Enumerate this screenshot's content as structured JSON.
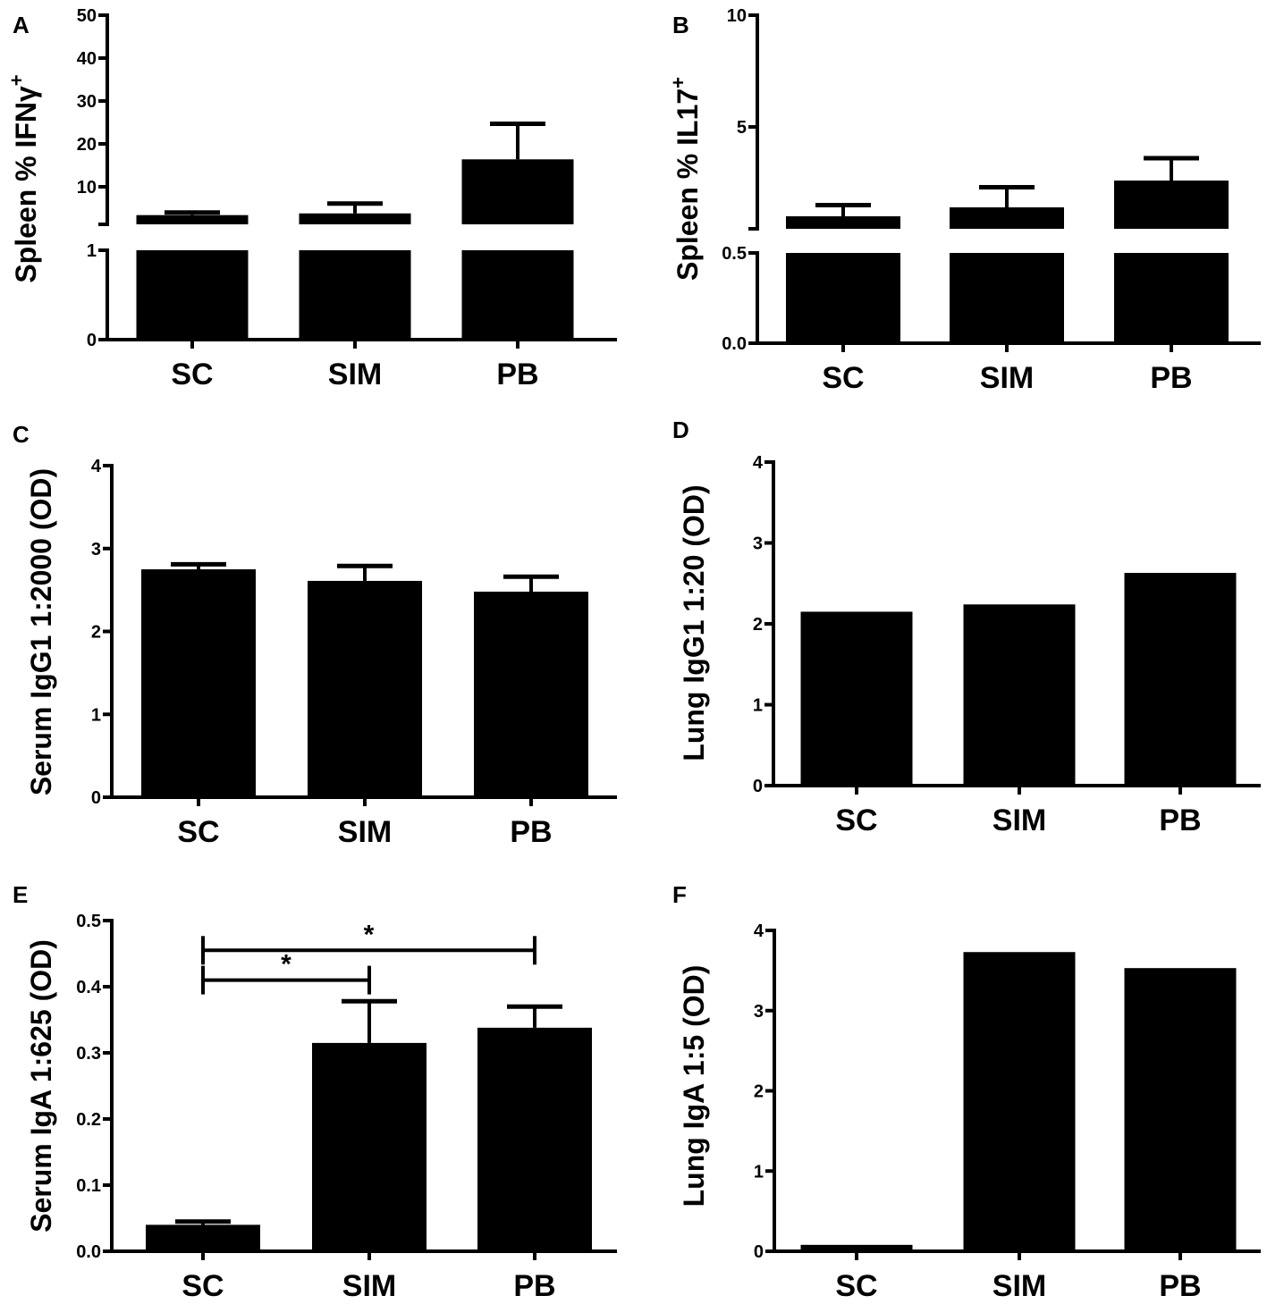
{
  "chart_data": [
    {
      "panel": "A",
      "type": "bar",
      "ylabel": "Spleen % IFNγ",
      "ylabel_sup": "+",
      "categories": [
        "SC",
        "SIM",
        "PB"
      ],
      "values": [
        3.4,
        3.8,
        16.4
      ],
      "error_upper": [
        4.0,
        6.1,
        24.7
      ],
      "y_axis_break": true,
      "lower_segment": {
        "ylim": [
          0,
          1
        ],
        "ticks": [
          "0",
          "1"
        ]
      },
      "upper_segment": {
        "ylim": [
          1.2,
          50
        ],
        "ticks": [
          "10",
          "20",
          "30",
          "40",
          "50"
        ]
      },
      "color": "#000000"
    },
    {
      "panel": "B",
      "type": "bar",
      "ylabel": "Spleen % IL17",
      "ylabel_sup": "+",
      "categories": [
        "SC",
        "SIM",
        "PB"
      ],
      "values": [
        1.0,
        1.4,
        2.6
      ],
      "error_upper": [
        1.5,
        2.3,
        3.6
      ],
      "y_axis_break": true,
      "lower_segment": {
        "ylim": [
          0,
          0.5
        ],
        "ticks": [
          "0.0",
          "0.5"
        ]
      },
      "upper_segment": {
        "ylim": [
          0.45,
          10
        ],
        "ticks": [
          "5",
          "10"
        ]
      },
      "color": "#000000"
    },
    {
      "panel": "C",
      "type": "bar",
      "ylabel": "Serum IgG1 1:2000 (OD)",
      "categories": [
        "SC",
        "SIM",
        "PB"
      ],
      "values": [
        2.75,
        2.61,
        2.48
      ],
      "error_upper": [
        2.81,
        2.79,
        2.66
      ],
      "ylim": [
        0,
        4
      ],
      "ticks": [
        "0",
        "1",
        "2",
        "3",
        "4"
      ],
      "color": "#000000"
    },
    {
      "panel": "D",
      "type": "bar",
      "ylabel": "Lung IgG1 1:20 (OD)",
      "categories": [
        "SC",
        "SIM",
        "PB"
      ],
      "values": [
        2.15,
        2.24,
        2.63
      ],
      "ylim": [
        0,
        4
      ],
      "ticks": [
        "0",
        "1",
        "2",
        "3",
        "4"
      ],
      "color": "#000000"
    },
    {
      "panel": "E",
      "type": "bar",
      "ylabel": "Serum IgA 1:625 (OD)",
      "categories": [
        "SC",
        "SIM",
        "PB"
      ],
      "values": [
        0.04,
        0.315,
        0.338
      ],
      "error_upper": [
        0.045,
        0.378,
        0.37
      ],
      "ylim": [
        0,
        0.5
      ],
      "ticks": [
        "0.0",
        "0.1",
        "0.2",
        "0.3",
        "0.4",
        "0.5"
      ],
      "significance": [
        {
          "from": "SC",
          "to": "PB",
          "label": "*"
        },
        {
          "from": "SC",
          "to": "SIM",
          "label": "*"
        }
      ],
      "color": "#000000"
    },
    {
      "panel": "F",
      "type": "bar",
      "ylabel": "Lung IgA 1:5 (OD)",
      "categories": [
        "SC",
        "SIM",
        "PB"
      ],
      "values": [
        0.08,
        3.73,
        3.53
      ],
      "ylim": [
        0,
        4
      ],
      "ticks": [
        "0",
        "1",
        "2",
        "3",
        "4"
      ],
      "color": "#000000"
    }
  ]
}
